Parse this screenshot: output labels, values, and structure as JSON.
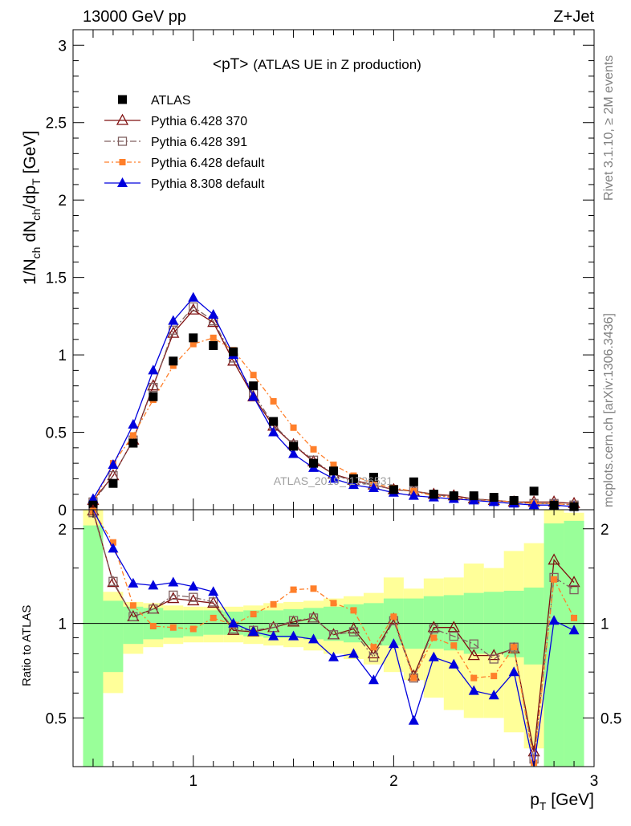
{
  "header": {
    "left": "13000 GeV pp",
    "right": "Z+Jet"
  },
  "side_labels": {
    "rivet": "Rivet 3.1.10, ≥ 2M events",
    "mcplots": "mcplots.cern.ch [arXiv:1306.3436]"
  },
  "watermark": "ATLAS_2019_I1736531",
  "colors": {
    "atlas": "#000000",
    "p370": "#7f1010",
    "p391": "#806060",
    "p6def": "#ff7f2a",
    "p8def": "#0000dd",
    "band_inner": "#99ff99",
    "band_outer": "#ffff99"
  },
  "chart_data": [
    {
      "type": "line",
      "title": "<pT>",
      "subtitle": "(ATLAS UE in Z production)",
      "ylabel_parts": [
        "1/N",
        "ch",
        " dN",
        "ch",
        "/dp",
        "T",
        " [GeV]"
      ],
      "xlim": [
        0.4,
        3.0
      ],
      "ylim": [
        0,
        3.1
      ],
      "yticks": [
        0,
        0.5,
        1,
        1.5,
        2,
        2.5,
        3
      ],
      "yticklabels": [
        "0",
        "0.5",
        "1",
        "1.5",
        "2",
        "2.5",
        "3"
      ],
      "legend_position": "top-left",
      "x": [
        0.5,
        0.6,
        0.7,
        0.8,
        0.9,
        1.0,
        1.1,
        1.2,
        1.3,
        1.4,
        1.5,
        1.6,
        1.7,
        1.8,
        1.9,
        2.0,
        2.1,
        2.2,
        2.3,
        2.4,
        2.5,
        2.6,
        2.7,
        2.8,
        2.9
      ],
      "series": [
        {
          "name": "ATLAS",
          "marker": "square-filled",
          "values": [
            0.03,
            0.17,
            0.43,
            0.73,
            0.96,
            1.11,
            1.06,
            1.02,
            0.8,
            0.57,
            0.41,
            0.3,
            0.25,
            0.2,
            0.21,
            0.13,
            0.18,
            0.1,
            0.09,
            0.09,
            0.08,
            0.06,
            0.12,
            0.03,
            0.02
          ]
        },
        {
          "name": "Pythia 6.428 370",
          "marker": "triangle-open",
          "values": [
            0.06,
            0.22,
            0.45,
            0.8,
            1.14,
            1.29,
            1.21,
            0.96,
            0.73,
            0.54,
            0.42,
            0.31,
            0.23,
            0.19,
            0.16,
            0.13,
            0.12,
            0.1,
            0.09,
            0.07,
            0.06,
            0.05,
            0.05,
            0.05,
            0.04
          ]
        },
        {
          "name": "Pythia 6.428 391",
          "marker": "square-open",
          "values": [
            0.05,
            0.22,
            0.45,
            0.79,
            1.16,
            1.31,
            1.22,
            0.98,
            0.75,
            0.55,
            0.42,
            0.32,
            0.23,
            0.18,
            0.16,
            0.13,
            0.12,
            0.1,
            0.08,
            0.07,
            0.06,
            0.05,
            0.04,
            0.04,
            0.03
          ]
        },
        {
          "name": "Pythia 6.428 default",
          "marker": "square-filled-small",
          "values": [
            0.04,
            0.3,
            0.48,
            0.71,
            0.93,
            1.07,
            1.11,
            1.03,
            0.87,
            0.7,
            0.53,
            0.39,
            0.29,
            0.22,
            0.17,
            0.14,
            0.12,
            0.09,
            0.08,
            0.06,
            0.06,
            0.05,
            0.04,
            0.04,
            0.03
          ]
        },
        {
          "name": "Pythia 8.308 default",
          "marker": "triangle-filled",
          "values": [
            0.07,
            0.29,
            0.55,
            0.9,
            1.22,
            1.37,
            1.26,
            1.0,
            0.73,
            0.5,
            0.36,
            0.27,
            0.2,
            0.16,
            0.14,
            0.11,
            0.09,
            0.08,
            0.07,
            0.06,
            0.05,
            0.04,
            0.03,
            0.03,
            0.02
          ]
        }
      ]
    },
    {
      "type": "line",
      "ylabel": "Ratio to ATLAS",
      "xlabel_parts": [
        "p",
        "T",
        " [GeV]"
      ],
      "xlim": [
        0.4,
        3.0
      ],
      "ylim": [
        0.35,
        2.3
      ],
      "xticks": [
        1,
        2,
        3
      ],
      "xticklabels": [
        "1",
        "2",
        "3"
      ],
      "yticks": [
        0.5,
        1,
        2
      ],
      "yticklabels": [
        "0.5",
        "1",
        "2"
      ],
      "x": [
        0.5,
        0.6,
        0.7,
        0.8,
        0.9,
        1.0,
        1.1,
        1.2,
        1.3,
        1.4,
        1.5,
        1.6,
        1.7,
        1.8,
        1.9,
        2.0,
        2.1,
        2.2,
        2.3,
        2.4,
        2.5,
        2.6,
        2.7,
        2.8,
        2.9
      ],
      "bands": {
        "inner": [
          [
            0.35,
            2.05
          ],
          [
            0.7,
            1.18
          ],
          [
            0.86,
            1.13
          ],
          [
            0.89,
            1.12
          ],
          [
            0.9,
            1.1
          ],
          [
            0.91,
            1.1
          ],
          [
            0.92,
            1.1
          ],
          [
            0.92,
            1.09
          ],
          [
            0.91,
            1.1
          ],
          [
            0.9,
            1.1
          ],
          [
            0.9,
            1.11
          ],
          [
            0.89,
            1.12
          ],
          [
            0.88,
            1.13
          ],
          [
            0.87,
            1.15
          ],
          [
            0.85,
            1.16
          ],
          [
            0.85,
            1.2
          ],
          [
            0.83,
            1.2
          ],
          [
            0.83,
            1.22
          ],
          [
            0.82,
            1.23
          ],
          [
            0.8,
            1.25
          ],
          [
            0.8,
            1.26
          ],
          [
            0.78,
            1.27
          ],
          [
            0.74,
            1.3
          ],
          [
            0.35,
            2.08
          ],
          [
            0.35,
            2.12
          ]
        ],
        "outer": [
          [
            0.35,
            2.3
          ],
          [
            0.6,
            1.26
          ],
          [
            0.8,
            1.17
          ],
          [
            0.84,
            1.16
          ],
          [
            0.86,
            1.14
          ],
          [
            0.87,
            1.13
          ],
          [
            0.87,
            1.13
          ],
          [
            0.87,
            1.13
          ],
          [
            0.86,
            1.14
          ],
          [
            0.85,
            1.16
          ],
          [
            0.84,
            1.17
          ],
          [
            0.82,
            1.18
          ],
          [
            0.8,
            1.2
          ],
          [
            0.77,
            1.22
          ],
          [
            0.74,
            1.25
          ],
          [
            0.7,
            1.4
          ],
          [
            0.66,
            1.29
          ],
          [
            0.58,
            1.39
          ],
          [
            0.53,
            1.4
          ],
          [
            0.5,
            1.55
          ],
          [
            0.5,
            1.5
          ],
          [
            0.45,
            1.7
          ],
          [
            0.4,
            1.8
          ],
          [
            0.35,
            2.3
          ],
          [
            0.35,
            2.25
          ]
        ]
      },
      "series": [
        {
          "name": "Pythia 6.428 370",
          "values": [
            2.28,
            1.35,
            1.05,
            1.11,
            1.2,
            1.18,
            1.16,
            0.95,
            0.94,
            0.97,
            1.01,
            1.04,
            0.92,
            0.96,
            0.8,
            1.03,
            0.68,
            0.97,
            0.97,
            0.79,
            0.79,
            0.83,
            0.39,
            1.59,
            1.35
          ]
        },
        {
          "name": "Pythia 6.428 391",
          "values": [
            2.25,
            1.36,
            1.05,
            1.11,
            1.23,
            1.21,
            1.17,
            0.96,
            0.95,
            0.97,
            1.02,
            1.04,
            0.92,
            0.94,
            0.78,
            1.02,
            0.67,
            0.96,
            0.91,
            0.86,
            0.77,
            0.84,
            0.37,
            1.4,
            1.28
          ]
        },
        {
          "name": "Pythia 6.428 default",
          "values": [
            2.28,
            1.81,
            1.14,
            0.98,
            0.97,
            0.96,
            1.04,
            0.99,
            1.07,
            1.15,
            1.28,
            1.29,
            1.16,
            1.1,
            0.84,
            1.05,
            0.67,
            0.9,
            0.85,
            0.67,
            0.68,
            0.84,
            0.36,
            1.38,
            1.04
          ]
        },
        {
          "name": "Pythia 8.308 default",
          "values": [
            2.33,
            1.73,
            1.34,
            1.32,
            1.35,
            1.31,
            1.26,
            1.0,
            0.94,
            0.91,
            0.91,
            0.89,
            0.78,
            0.8,
            0.66,
            0.86,
            0.49,
            0.78,
            0.74,
            0.61,
            0.59,
            0.7,
            0.33,
            1.02,
            0.95
          ]
        }
      ]
    }
  ]
}
